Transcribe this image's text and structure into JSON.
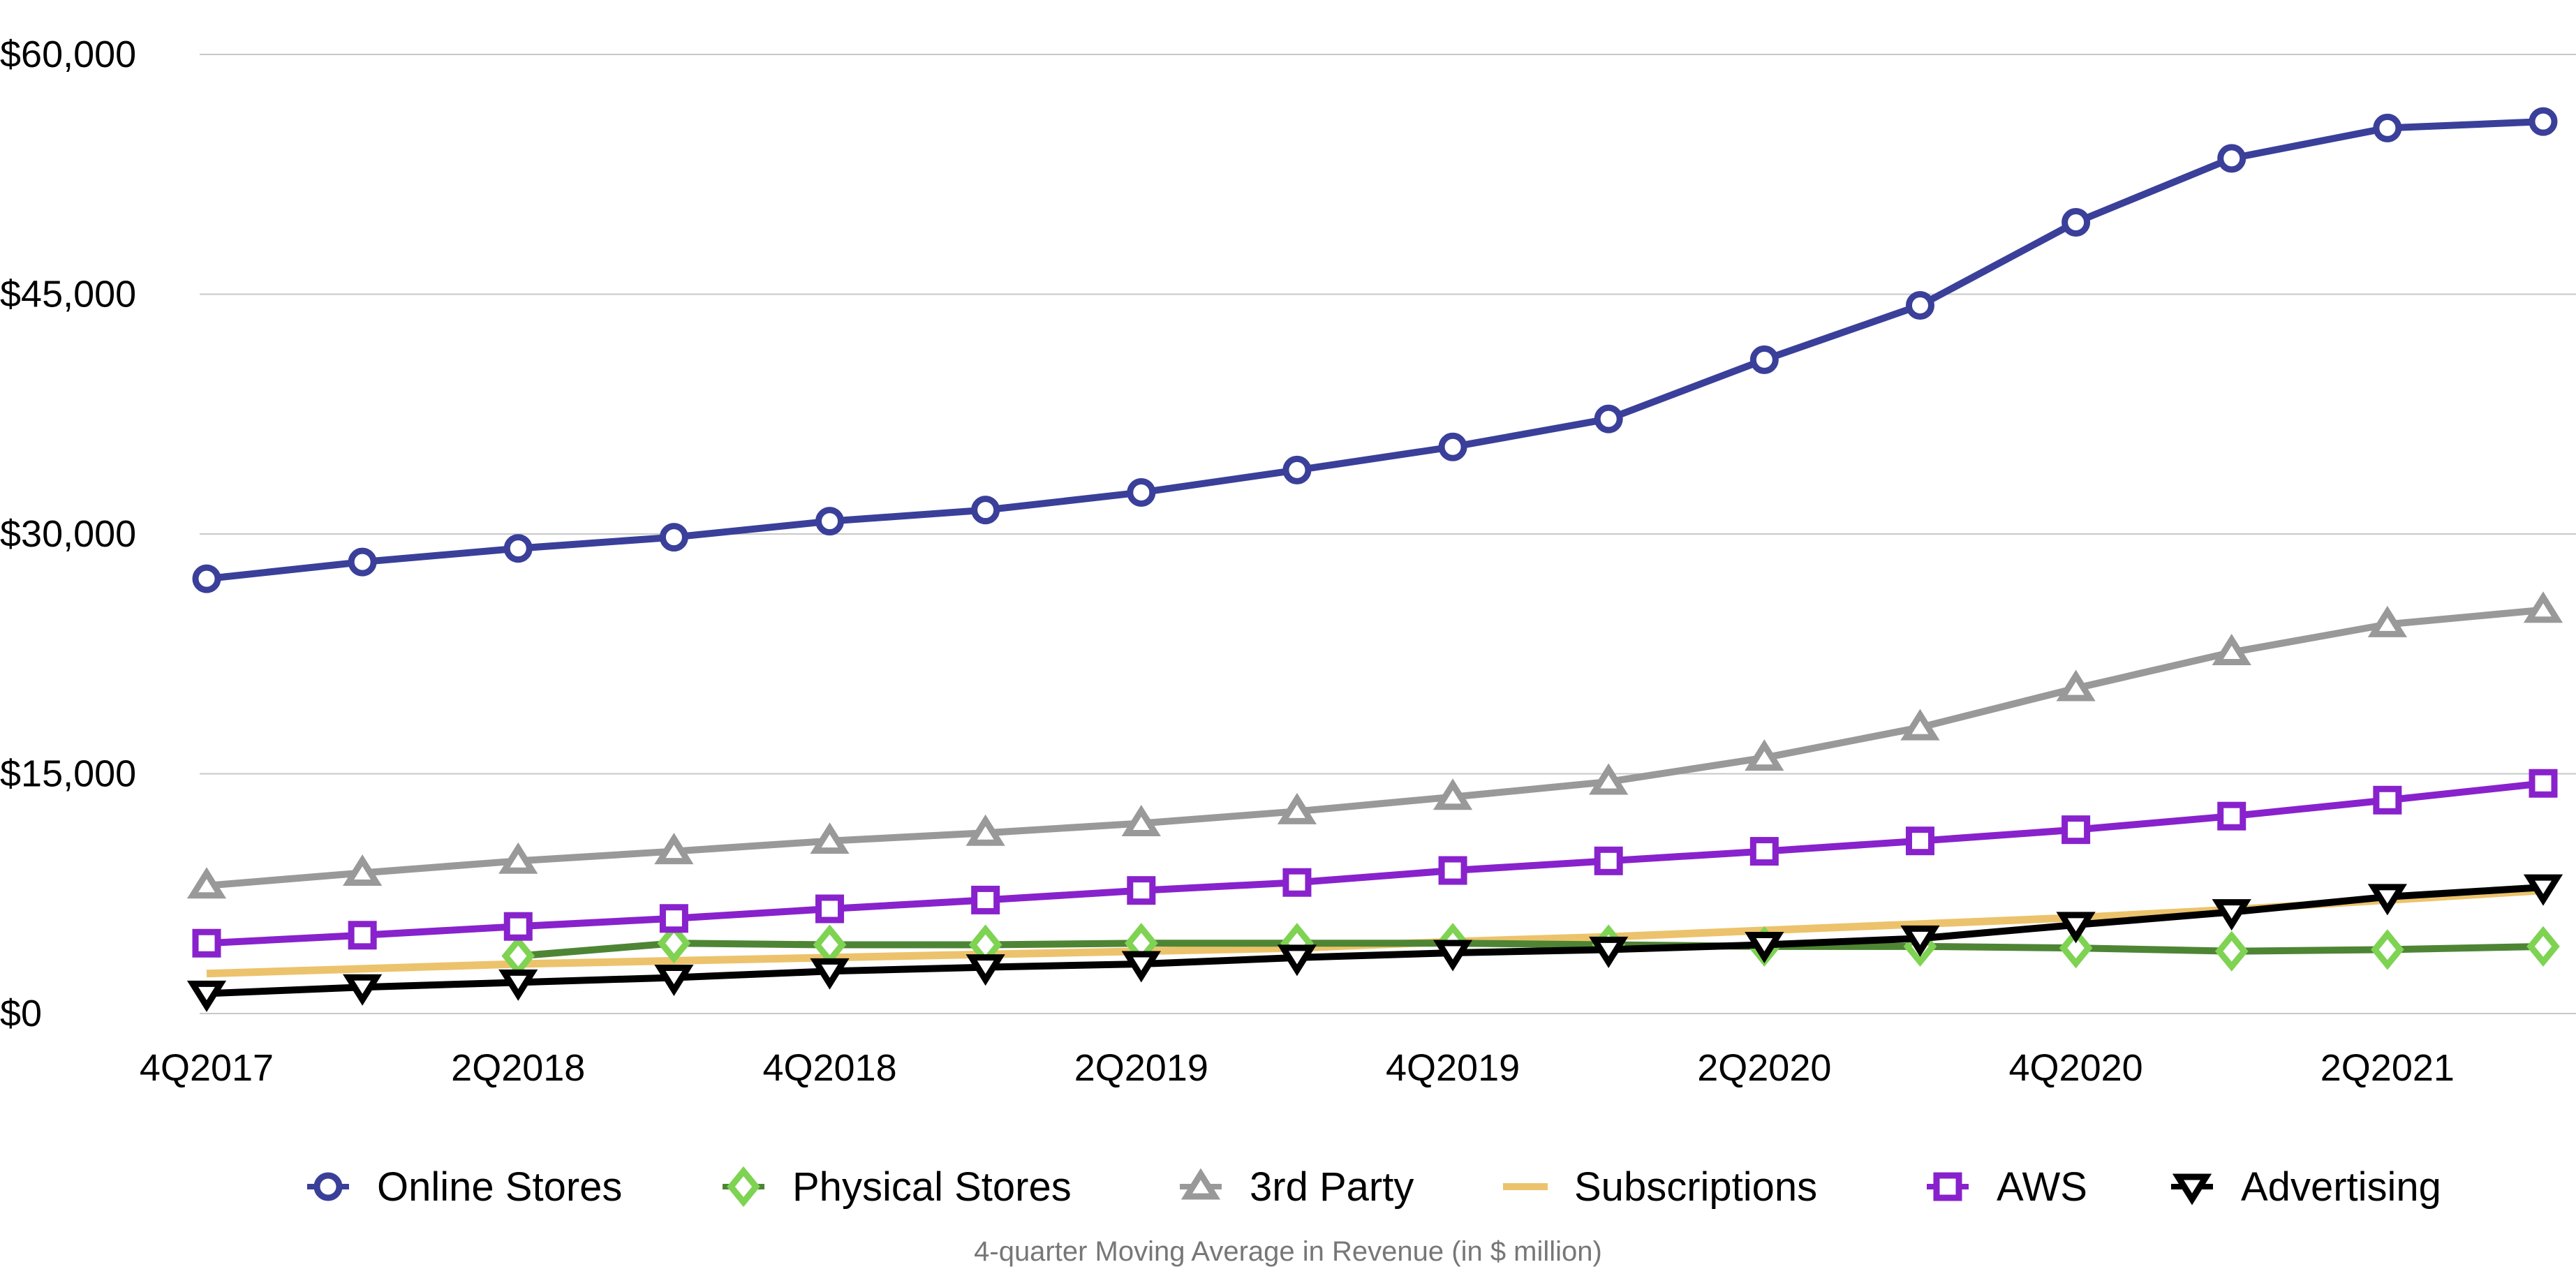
{
  "chart_data": {
    "type": "line",
    "title": "",
    "xlabel": "4-quarter Moving Average in Revenue (in $ million)",
    "ylabel": "",
    "ylim": [
      0,
      60000
    ],
    "yticks": [
      0,
      15000,
      30000,
      45000,
      60000
    ],
    "ytick_labels": [
      "$0",
      "$15,000",
      "$30,000",
      "$45,000",
      "$60,000"
    ],
    "x": [
      "4Q2017",
      "1Q2018",
      "2Q2018",
      "3Q2018",
      "4Q2018",
      "1Q2019",
      "2Q2019",
      "3Q2019",
      "4Q2019",
      "1Q2020",
      "2Q2020",
      "3Q2020",
      "4Q2020",
      "1Q2021",
      "2Q2021",
      "3Q2021"
    ],
    "xtick_labels": [
      "4Q2017",
      "2Q2018",
      "4Q2018",
      "2Q2019",
      "4Q2019",
      "2Q2020",
      "4Q2020",
      "2Q2021"
    ],
    "grid": true,
    "legend_position": "bottom",
    "series": [
      {
        "name": "Online Stores",
        "color": "#3a3f9a",
        "marker": "circle",
        "values": [
          27200,
          28250,
          29100,
          29800,
          30800,
          31500,
          32600,
          34000,
          35450,
          37200,
          40900,
          44300,
          49500,
          53500,
          55400,
          55800
        ]
      },
      {
        "name": "Physical Stores",
        "color": "#4e8534",
        "marker_color": "#7ed352",
        "marker": "diamond",
        "values": [
          null,
          null,
          3600,
          4400,
          4300,
          4300,
          4400,
          4400,
          4400,
          4300,
          4200,
          4200,
          4100,
          3900,
          4000,
          4200
        ]
      },
      {
        "name": "3rd Party",
        "color": "#999999",
        "marker": "triangle-up",
        "values": [
          8000,
          8800,
          9550,
          10150,
          10800,
          11300,
          11900,
          12650,
          13550,
          14500,
          16000,
          17900,
          20350,
          22600,
          24350,
          25250
        ]
      },
      {
        "name": "Subscriptions",
        "color": "#ecc36c",
        "marker": "none",
        "values": [
          2500,
          2800,
          3100,
          3300,
          3500,
          3700,
          3900,
          4100,
          4500,
          4800,
          5200,
          5600,
          6000,
          6500,
          7100,
          7700
        ]
      },
      {
        "name": "AWS",
        "color": "#8822cc",
        "marker": "square",
        "values": [
          4400,
          4900,
          5450,
          5950,
          6550,
          7100,
          7700,
          8200,
          8950,
          9550,
          10150,
          10800,
          11500,
          12350,
          13350,
          14400
        ]
      },
      {
        "name": "Advertising",
        "color": "#000000",
        "marker": "triangle-down",
        "values": [
          1250,
          1650,
          1950,
          2250,
          2650,
          2900,
          3100,
          3500,
          3800,
          4000,
          4300,
          4700,
          5550,
          6350,
          7300,
          7900
        ]
      }
    ]
  }
}
